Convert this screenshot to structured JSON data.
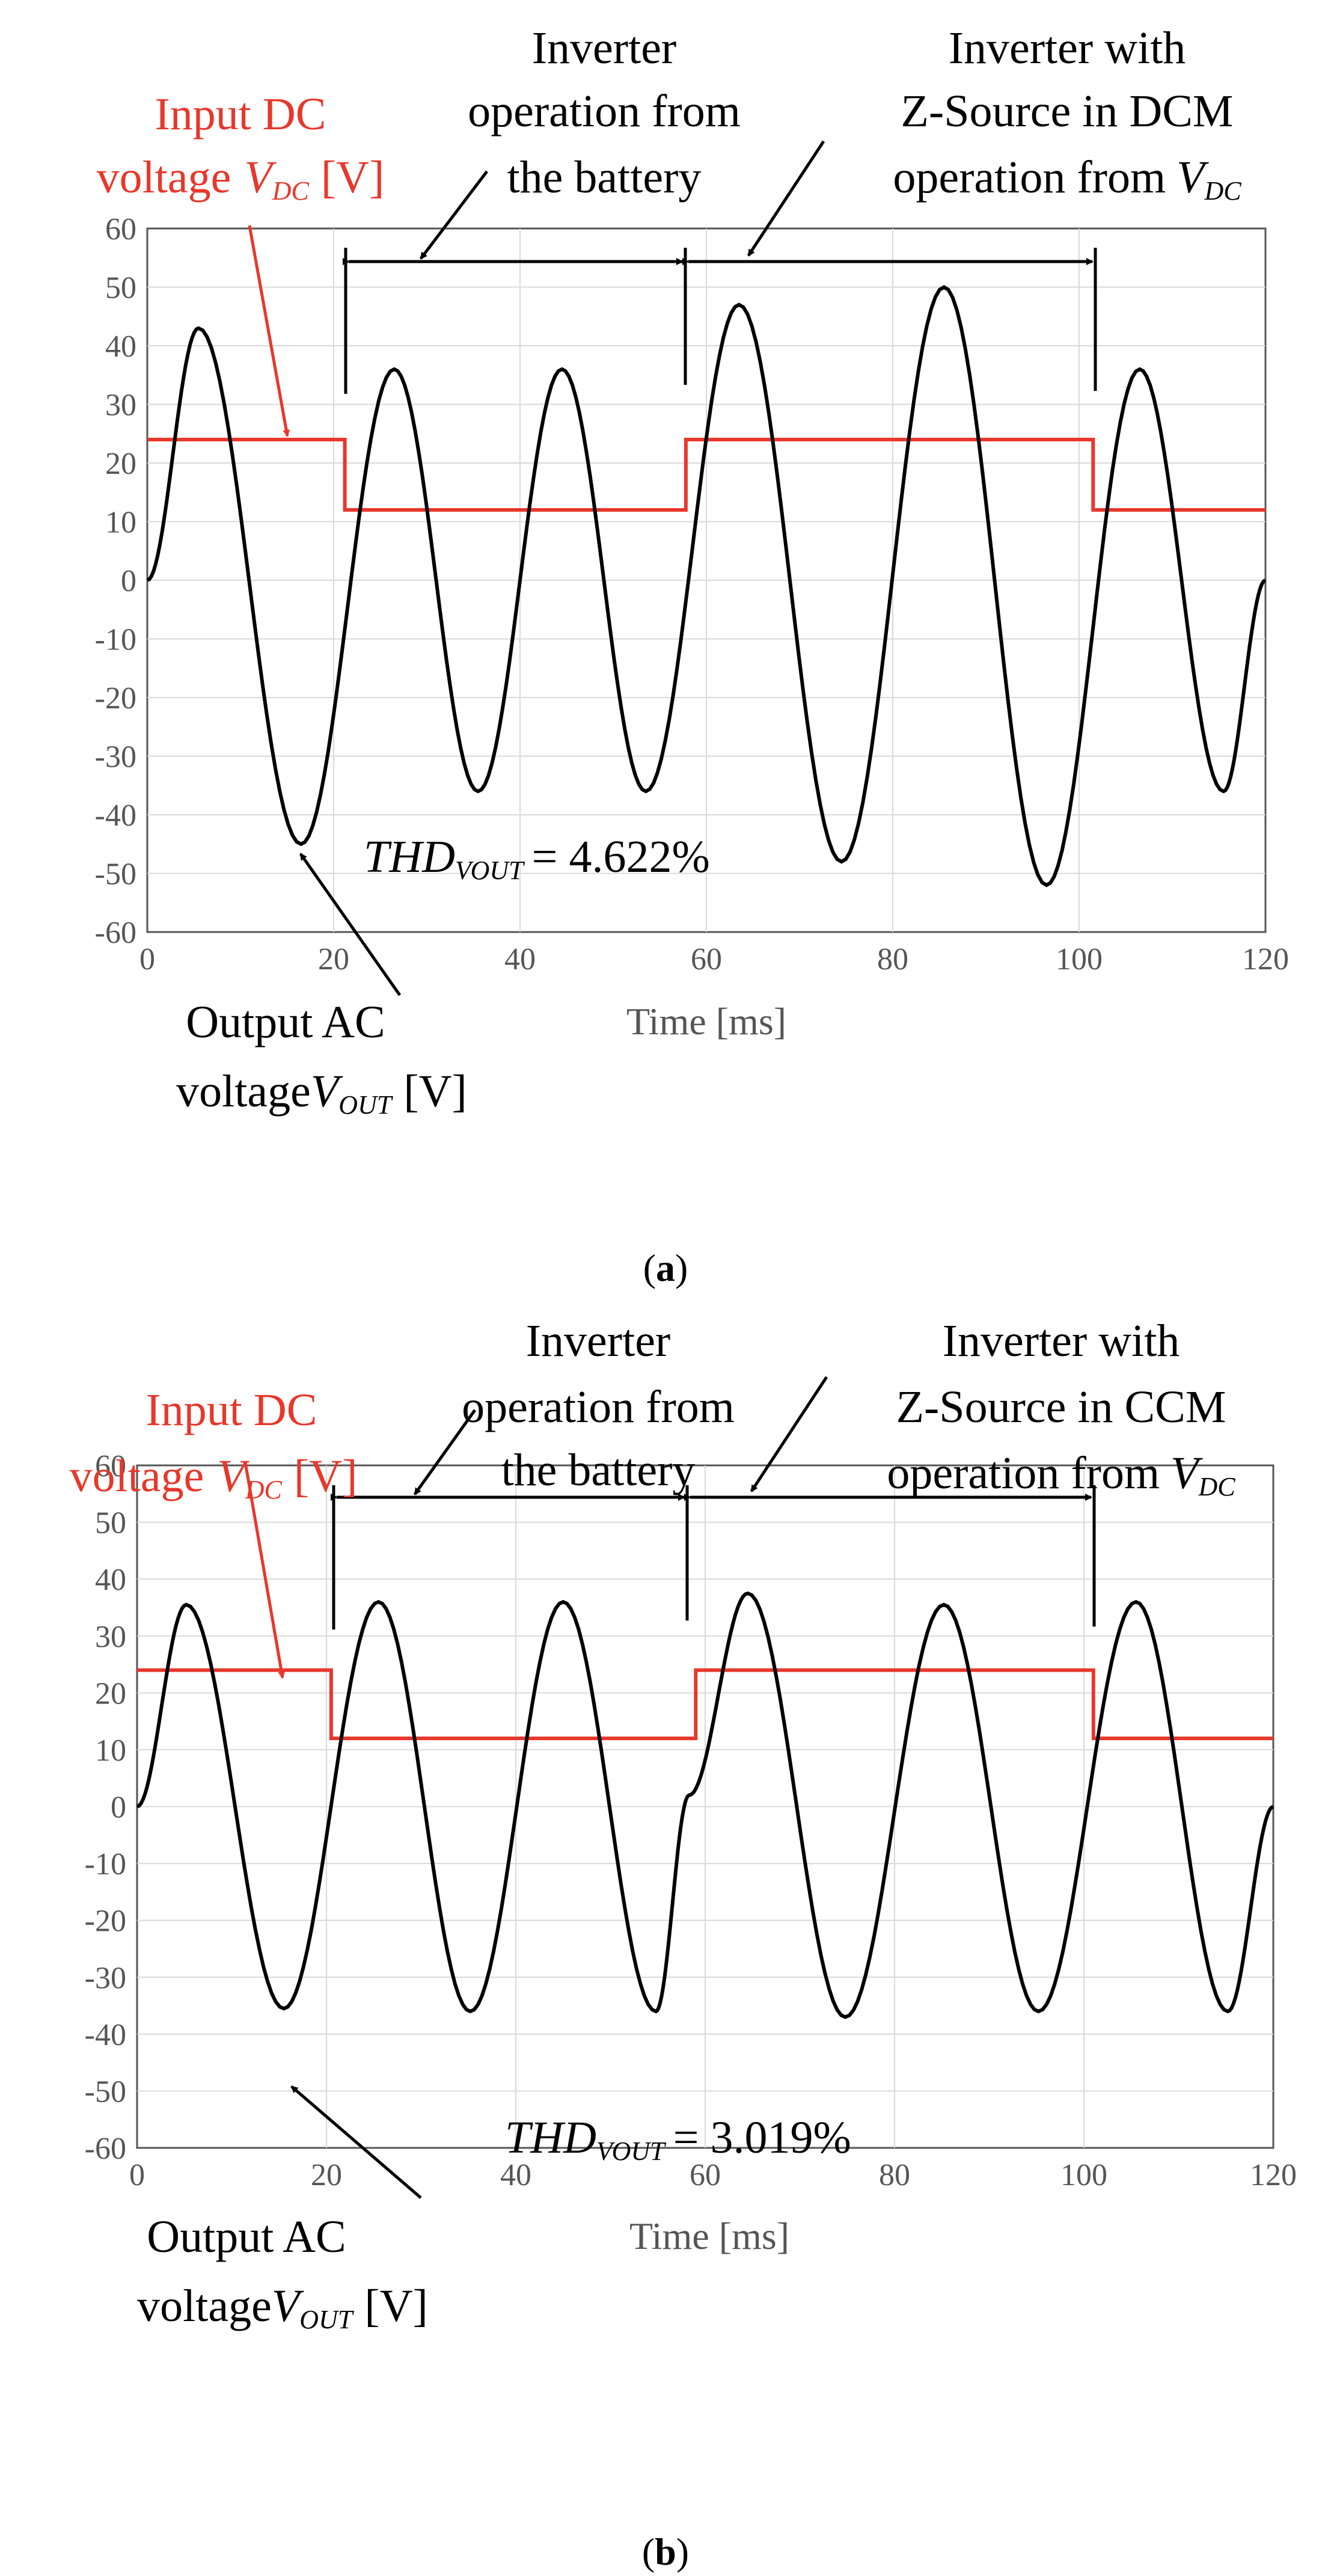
{
  "colors": {
    "ac": "#000000",
    "dc": "#e8372b",
    "grid": "#d9d9d9",
    "axis": "#555555"
  },
  "chart_data": [
    {
      "type": "line",
      "panel_label": "a",
      "xlabel": "Time [ms]",
      "ylabel": "",
      "xlim": [
        0,
        120
      ],
      "ylim": [
        -60,
        60
      ],
      "x_ticks": [
        "0",
        "20",
        "40",
        "60",
        "80",
        "100",
        "120"
      ],
      "y_ticks": [
        "60",
        "50",
        "40",
        "30",
        "20",
        "10",
        "0",
        "-10",
        "-20",
        "-30",
        "-40",
        "-50",
        "-60"
      ],
      "grid": true,
      "series": [
        {
          "id": "vdc",
          "color": "#e8372b",
          "points": [
            [
              0,
              24
            ],
            [
              21.2,
              24
            ],
            [
              21.2,
              12
            ],
            [
              57.8,
              12
            ],
            [
              57.8,
              24
            ],
            [
              101.5,
              24
            ],
            [
              101.5,
              12
            ],
            [
              120,
              12
            ]
          ]
        },
        {
          "id": "vout",
          "color": "#000000",
          "points": [
            [
              0,
              0
            ],
            [
              5.5,
              43
            ],
            [
              16.5,
              -45
            ],
            [
              26.5,
              36
            ],
            [
              35.5,
              -36
            ],
            [
              44.5,
              36
            ],
            [
              53.5,
              -36
            ],
            [
              63.5,
              47
            ],
            [
              74.5,
              -48
            ],
            [
              85.5,
              50
            ],
            [
              96.5,
              -52
            ],
            [
              106.5,
              36
            ],
            [
              115.5,
              -36
            ],
            [
              120,
              0
            ]
          ]
        }
      ],
      "annotations": {
        "input_dc_line1": "Input DC",
        "input_dc_line2": "voltage",
        "input_dc_sym": "V",
        "input_dc_sub": "DC",
        "input_dc_unit": "[V]",
        "battery_line1": "Inverter",
        "battery_line2": "operation from",
        "battery_line3": "the battery",
        "zsource_line1": "Inverter with",
        "zsource_line2": "Z-Source in DCM",
        "zsource_line3": "operation from",
        "zsource_sym": "V",
        "zsource_sub": "DC",
        "output_line1": "Output AC",
        "output_line2": "voltage",
        "output_sym": "V",
        "output_sub": "OUT",
        "output_unit": "[V]",
        "thd_sym": "THD",
        "thd_sub": "VOUT",
        "thd_value": "= 4.622%"
      },
      "caption": "a"
    },
    {
      "type": "line",
      "panel_label": "b",
      "xlabel": "Time [ms]",
      "ylabel": "",
      "xlim": [
        0,
        120
      ],
      "ylim": [
        -60,
        60
      ],
      "x_ticks": [
        "0",
        "20",
        "40",
        "60",
        "80",
        "100",
        "120"
      ],
      "y_ticks": [
        "60",
        "50",
        "40",
        "30",
        "20",
        "10",
        "0",
        "-10",
        "-20",
        "-30",
        "-40",
        "-50",
        "-60"
      ],
      "grid": true,
      "series": [
        {
          "id": "vdc",
          "color": "#e8372b",
          "points": [
            [
              0,
              24
            ],
            [
              20.5,
              24
            ],
            [
              20.5,
              12
            ],
            [
              59,
              12
            ],
            [
              59,
              24
            ],
            [
              101,
              24
            ],
            [
              101,
              12
            ],
            [
              120,
              12
            ]
          ]
        },
        {
          "id": "vout",
          "color": "#000000",
          "points": [
            [
              0,
              0
            ],
            [
              5.2,
              35.5
            ],
            [
              15.5,
              -35.5
            ],
            [
              25.5,
              36
            ],
            [
              35.2,
              -36
            ],
            [
              45,
              36
            ],
            [
              54.8,
              -36
            ],
            [
              58.3,
              2
            ],
            [
              64.5,
              37.5
            ],
            [
              74.8,
              -37
            ],
            [
              85.2,
              35.5
            ],
            [
              95.2,
              -36
            ],
            [
              105.5,
              36
            ],
            [
              115.2,
              -36
            ],
            [
              120,
              0
            ]
          ]
        }
      ],
      "annotations": {
        "input_dc_line1": "Input DC",
        "input_dc_line2": "voltage",
        "input_dc_sym": "V",
        "input_dc_sub": "DC",
        "input_dc_unit": "[V]",
        "battery_line1": "Inverter",
        "battery_line2": "operation from",
        "battery_line3": "the battery",
        "zsource_line1": "Inverter with",
        "zsource_line2": "Z-Source in CCM",
        "zsource_line3": "operation from",
        "zsource_sym": "V",
        "zsource_sub": "DC",
        "output_line1": "Output AC",
        "output_line2": "voltage",
        "output_sym": "V",
        "output_sub": "OUT",
        "output_unit": "[V]",
        "thd_sym": "THD",
        "thd_sub": "VOUT",
        "thd_value": "= 3.019%"
      },
      "caption": "b"
    }
  ]
}
